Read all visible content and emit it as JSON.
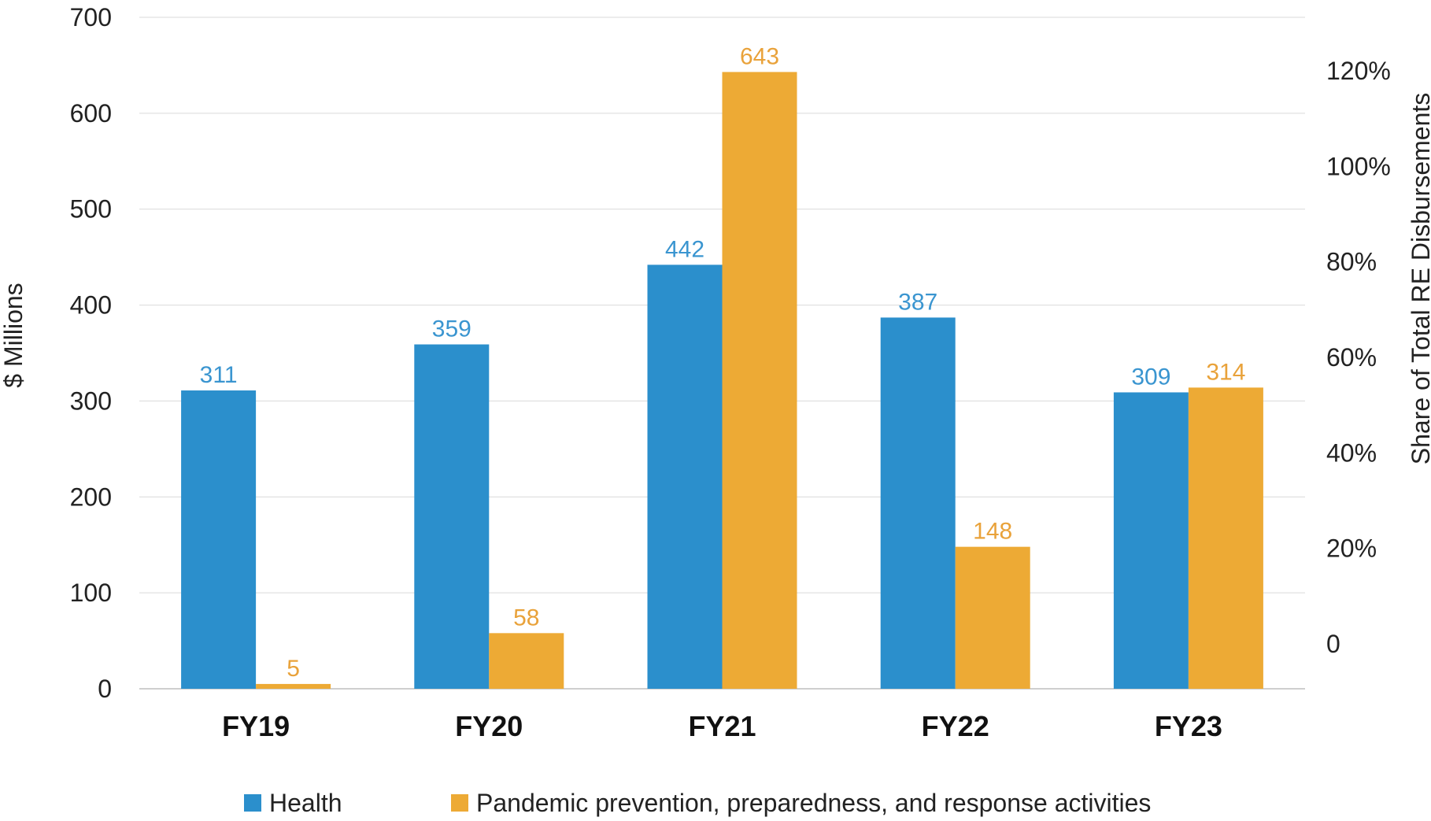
{
  "chart_data": {
    "type": "bar",
    "categories": [
      "FY19",
      "FY20",
      "FY21",
      "FY22",
      "FY23"
    ],
    "series": [
      {
        "name": "Health",
        "color": "#2B8FCC",
        "label_color": "#3A95D0",
        "values": [
          311,
          359,
          442,
          387,
          309
        ]
      },
      {
        "name": "Pandemic prevention, preparedness, and response activities",
        "color": "#EDAA35",
        "label_color": "#E9A23A",
        "values": [
          5,
          58,
          643,
          148,
          314
        ]
      }
    ],
    "y_left": {
      "label": "$ Millions",
      "ylim": [
        0,
        700
      ],
      "ticks": [
        "0",
        "100",
        "200",
        "300",
        "400",
        "500",
        "600",
        "700"
      ]
    },
    "y_right": {
      "label": "Share of Total RE Disbursements",
      "ticks": [
        "0",
        "20%",
        "40%",
        "60%",
        "80%",
        "100%",
        "120%"
      ]
    },
    "grid": true,
    "legend_position": "bottom"
  }
}
